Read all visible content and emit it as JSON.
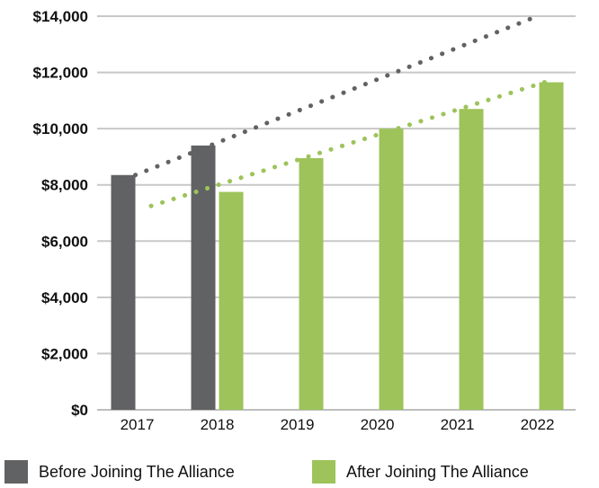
{
  "chart_data": {
    "type": "bar",
    "categories": [
      "2017",
      "2018",
      "2019",
      "2020",
      "2021",
      "2022"
    ],
    "series": [
      {
        "name": "Before Joining The Alliance",
        "color": "#616264",
        "values": [
          8350,
          9400,
          null,
          null,
          null,
          null
        ],
        "trendline": {
          "style": "dotted",
          "start": 8350,
          "end": 14000
        }
      },
      {
        "name": "After Joining The Alliance",
        "color": "#9dc35a",
        "values": [
          null,
          7750,
          8950,
          10000,
          10700,
          11650
        ],
        "trendline": {
          "style": "dotted",
          "start": 7250,
          "end": 11650
        }
      }
    ],
    "ylim": [
      0,
      14000
    ],
    "yticks": [
      "$0",
      "$2,000",
      "$4,000",
      "$6,000",
      "$8,000",
      "$10,000",
      "$12,000",
      "$14,000"
    ],
    "grid": true,
    "legend_position": "bottom",
    "title": "",
    "xlabel": "",
    "ylabel": ""
  }
}
